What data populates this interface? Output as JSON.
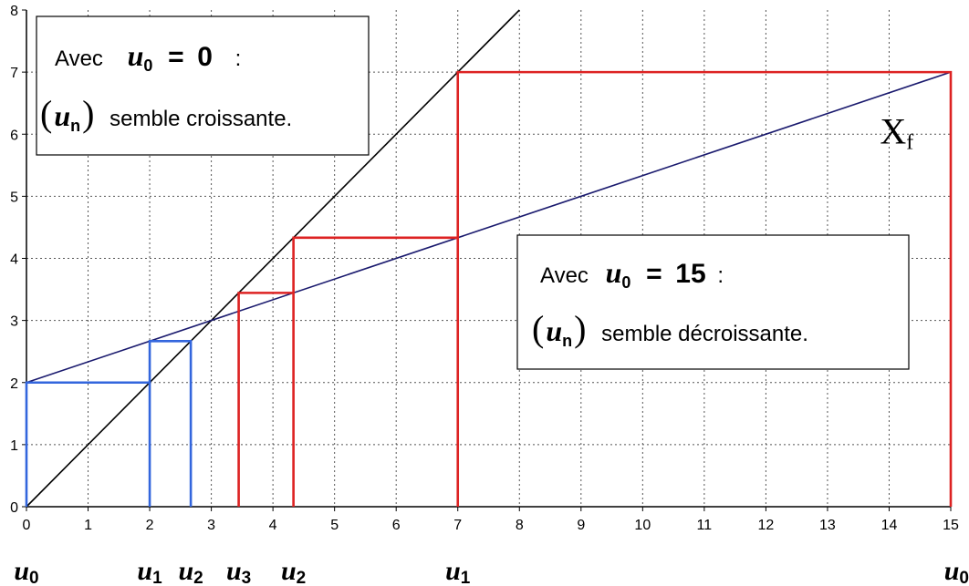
{
  "chart_data": {
    "type": "line",
    "xlim": [
      0,
      15
    ],
    "ylim": [
      0,
      8
    ],
    "x_ticks": [
      "0",
      "1",
      "2",
      "3",
      "4",
      "5",
      "6",
      "7",
      "8",
      "9",
      "10",
      "11",
      "12",
      "13",
      "14",
      "15"
    ],
    "y_ticks": [
      "0",
      "1",
      "2",
      "3",
      "4",
      "5",
      "6",
      "7",
      "8"
    ],
    "grid": true,
    "series": [
      {
        "id": "identity",
        "color": "#000000",
        "points": [
          [
            0,
            0
          ],
          [
            8,
            8
          ]
        ]
      },
      {
        "id": "f",
        "color": "#1a1a6e",
        "points": [
          [
            0,
            2
          ],
          [
            15,
            7
          ]
        ]
      },
      {
        "id": "cobweb-u0-0",
        "color": "#3366dd",
        "points": [
          [
            0,
            0
          ],
          [
            0,
            2
          ],
          [
            2,
            2
          ],
          [
            2,
            0
          ],
          [
            2,
            2.667
          ],
          [
            2.667,
            2.667
          ],
          [
            2.667,
            0
          ]
        ]
      },
      {
        "id": "cobweb-u0-15",
        "color": "#dd2222",
        "points": [
          [
            15,
            0
          ],
          [
            15,
            7
          ],
          [
            7,
            7
          ],
          [
            7,
            0
          ],
          [
            7,
            4.333
          ],
          [
            4.333,
            4.333
          ],
          [
            4.333,
            0
          ],
          [
            4.333,
            3.444
          ],
          [
            3.444,
            3.444
          ],
          [
            3.444,
            0
          ]
        ]
      }
    ],
    "curve_label": {
      "text": "X",
      "sub": "f",
      "x": 13.85,
      "y": 5.85
    },
    "axis_markers": [
      {
        "base": "u",
        "sub": "0",
        "x": 0
      },
      {
        "base": "u",
        "sub": "1",
        "x": 2
      },
      {
        "base": "u",
        "sub": "2",
        "x": 2.667
      },
      {
        "base": "u",
        "sub": "3",
        "x": 3.444
      },
      {
        "base": "u",
        "sub": "2",
        "x": 4.333
      },
      {
        "base": "u",
        "sub": "1",
        "x": 7
      },
      {
        "base": "u",
        "sub": "0",
        "x": 15
      }
    ],
    "annotations": [
      {
        "id": "annotation-u0-0",
        "line1": {
          "prefix": "Avec",
          "var": "u",
          "sub": "0",
          "op": "=",
          "value": "0",
          "suffix": ":"
        },
        "line2": {
          "open": "(",
          "var": "u",
          "sub": "n",
          "close": ")",
          "text": "semble croissante."
        }
      },
      {
        "id": "annotation-u0-15",
        "line1": {
          "prefix": "Avec",
          "var": "u",
          "sub": "0",
          "op": "=",
          "value": "15",
          "suffix": ":"
        },
        "line2": {
          "open": "(",
          "var": "u",
          "sub": "n",
          "close": ")",
          "text": "semble décroissante."
        }
      }
    ]
  }
}
